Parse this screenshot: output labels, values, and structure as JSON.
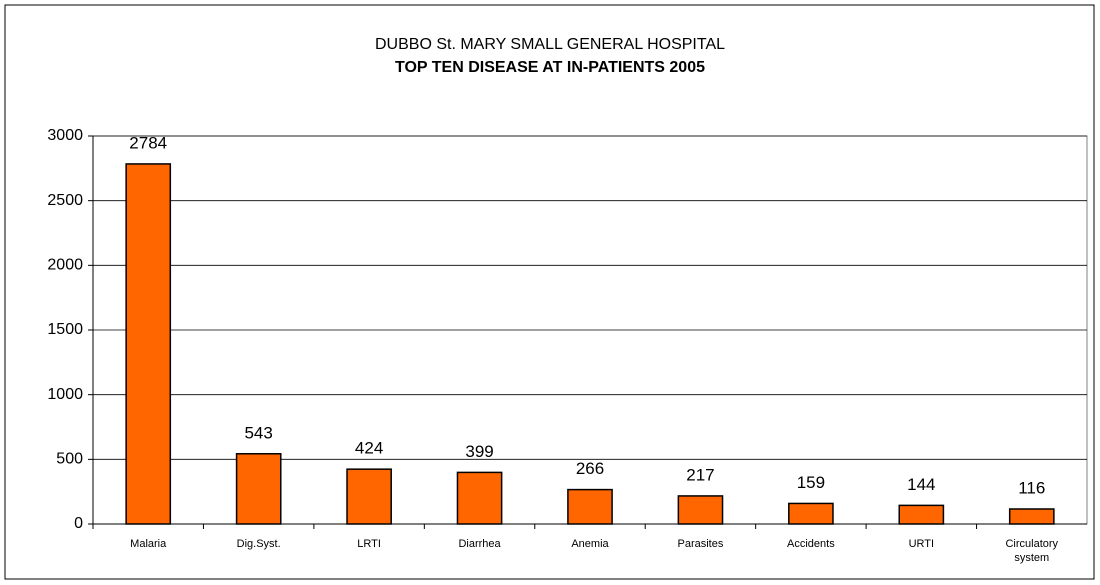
{
  "chart_data": {
    "type": "bar",
    "title": "DUBBO St. MARY SMALL GENERAL HOSPITAL",
    "subtitle": "TOP TEN DISEASE AT IN-PATIENTS 2005",
    "categories": [
      "Malaria",
      "Dig.Syst.",
      "LRTI",
      "Diarrhea",
      "Anemia",
      "Parasites",
      "Accidents",
      "URTI",
      "Circulatory system"
    ],
    "values": [
      2784,
      543,
      424,
      399,
      266,
      217,
      159,
      144,
      116
    ],
    "color": "#ff6600",
    "ylim": [
      0,
      3000
    ],
    "yticks": [
      0,
      500,
      1000,
      1500,
      2000,
      2500,
      3000
    ],
    "grid": true
  }
}
